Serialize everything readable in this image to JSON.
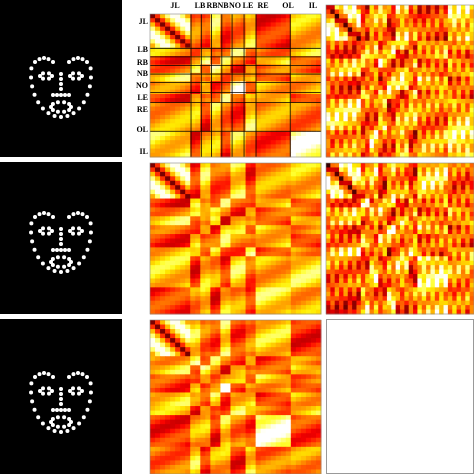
{
  "top_labels": [
    "JL",
    "LB",
    "RB",
    "NB",
    "NO",
    "LE",
    "RE",
    "OL",
    "IL"
  ],
  "side_labels": [
    "JL",
    "LB",
    "RB",
    "NB",
    "NO",
    "LE",
    "RE",
    "OL",
    "IL"
  ]
}
